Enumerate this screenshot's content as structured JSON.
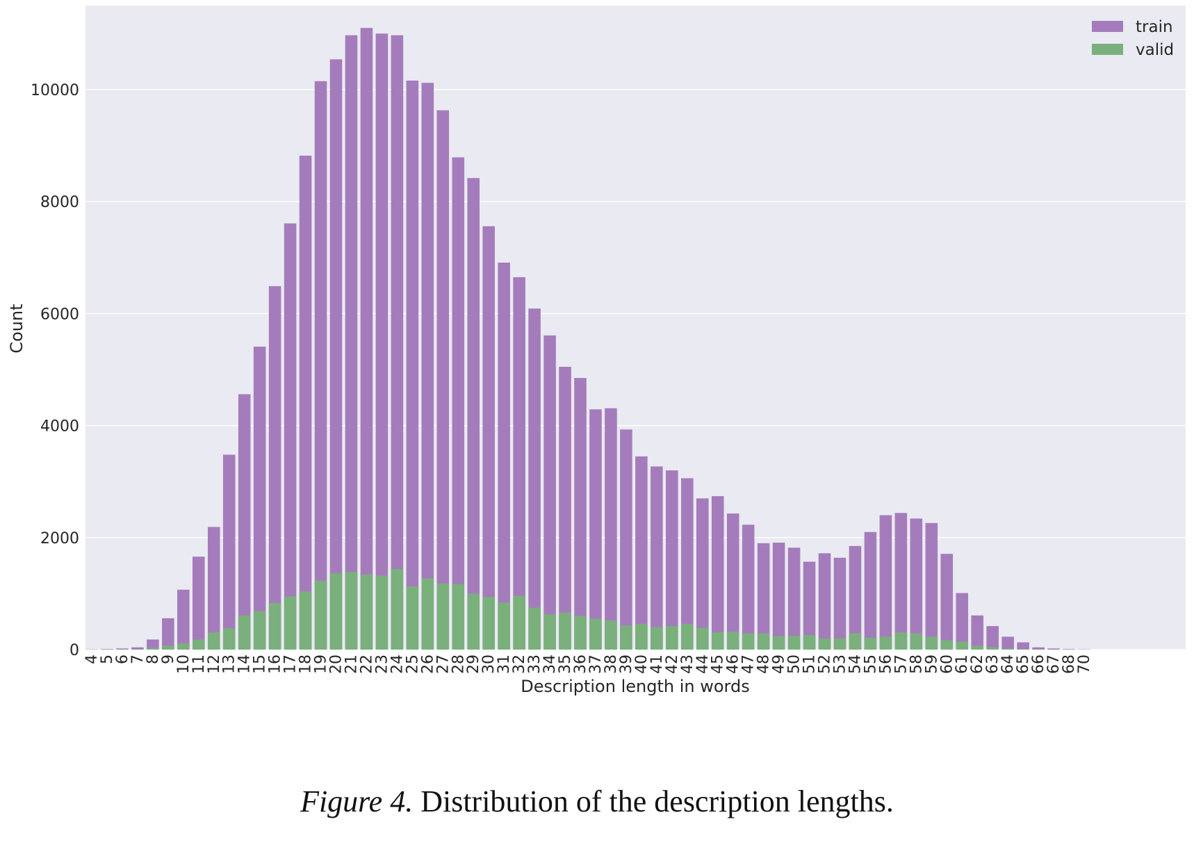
{
  "chart_data": {
    "type": "bar",
    "title": "",
    "xlabel": "Description length in words",
    "ylabel": "Count",
    "ylim": [
      0,
      11500
    ],
    "yticks": [
      0,
      2000,
      4000,
      6000,
      8000,
      10000
    ],
    "grid": true,
    "legend_position": "top-right",
    "categories": [
      "4",
      "5",
      "6",
      "7",
      "8",
      "9",
      "10",
      "11",
      "12",
      "13",
      "14",
      "15",
      "16",
      "17",
      "18",
      "19",
      "20",
      "21",
      "22",
      "23",
      "24",
      "25",
      "26",
      "27",
      "28",
      "29",
      "30",
      "31",
      "32",
      "33",
      "34",
      "35",
      "36",
      "37",
      "38",
      "39",
      "40",
      "41",
      "42",
      "43",
      "44",
      "45",
      "46",
      "47",
      "48",
      "49",
      "50",
      "51",
      "52",
      "53",
      "54",
      "55",
      "56",
      "57",
      "58",
      "59",
      "60",
      "61",
      "62",
      "63",
      "64",
      "65",
      "66",
      "67",
      "68",
      "70"
    ],
    "series": [
      {
        "name": "train",
        "color": "#a57cbb",
        "values": [
          5,
          10,
          20,
          40,
          180,
          560,
          1070,
          1660,
          2190,
          3480,
          4560,
          5410,
          6490,
          7610,
          8820,
          10150,
          10540,
          10970,
          11100,
          11000,
          10970,
          10160,
          10120,
          9630,
          8790,
          8420,
          7560,
          6910,
          6650,
          6090,
          5610,
          5050,
          4850,
          4290,
          4310,
          3930,
          3450,
          3270,
          3200,
          3060,
          2700,
          2740,
          2430,
          2230,
          1900,
          1910,
          1820,
          1570,
          1720,
          1640,
          1850,
          2100,
          2400,
          2440,
          2340,
          2260,
          1710,
          1010,
          610,
          420,
          230,
          130,
          40,
          20,
          10,
          5
        ]
      },
      {
        "name": "valid",
        "color": "#7ab07c",
        "values": [
          1,
          2,
          3,
          5,
          30,
          70,
          110,
          180,
          310,
          380,
          610,
          690,
          830,
          950,
          1040,
          1230,
          1360,
          1390,
          1340,
          1320,
          1440,
          1130,
          1270,
          1180,
          1170,
          1000,
          940,
          840,
          960,
          750,
          630,
          660,
          600,
          550,
          520,
          430,
          460,
          400,
          420,
          460,
          390,
          310,
          320,
          290,
          290,
          240,
          250,
          260,
          200,
          200,
          290,
          210,
          230,
          310,
          290,
          230,
          170,
          140,
          70,
          40,
          20,
          10,
          4,
          2,
          1,
          1
        ]
      }
    ]
  },
  "caption": {
    "label": "Figure 4.",
    "text": "Distribution of the description lengths."
  }
}
